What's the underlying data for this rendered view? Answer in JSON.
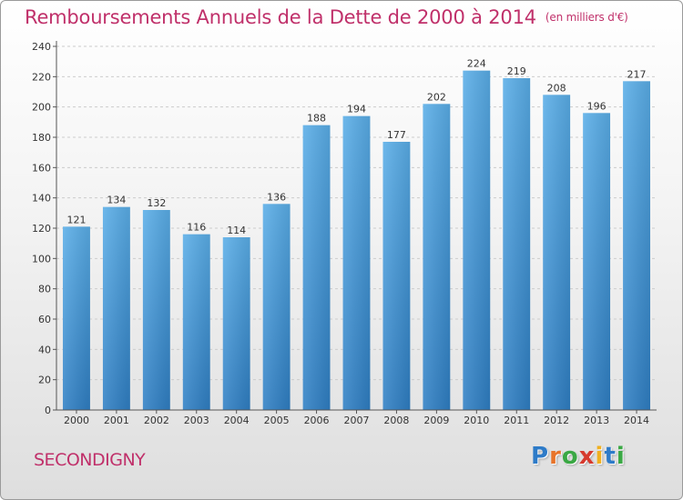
{
  "title": "Remboursements Annuels de la Dette de 2000 à 2014",
  "unit_note": "(en milliers d'€)",
  "town": "SECONDIGNY",
  "logo": {
    "text": "Proxiti",
    "letters": [
      "P",
      "r",
      "o",
      "x",
      "i",
      "t",
      "i"
    ],
    "colors": [
      "#2e7bc8",
      "#e8742a",
      "#3aa844",
      "#d63a2e",
      "#f0b020",
      "#2e7bc8",
      "#3aa844"
    ]
  },
  "colors": {
    "title": "#c0306a",
    "bar": "#4a9fdf",
    "grid": "#cccccc"
  },
  "chart_data": {
    "type": "bar",
    "title": "Remboursements Annuels de la Dette de 2000 à 2014",
    "xlabel": "",
    "ylabel": "",
    "ylim": [
      0,
      240
    ],
    "yticks": [
      0,
      20,
      40,
      60,
      80,
      100,
      120,
      140,
      160,
      180,
      200,
      220,
      240
    ],
    "grid": true,
    "categories": [
      "2000",
      "2001",
      "2002",
      "2003",
      "2004",
      "2005",
      "2006",
      "2007",
      "2008",
      "2009",
      "2010",
      "2011",
      "2012",
      "2013",
      "2014"
    ],
    "values": [
      121,
      134,
      132,
      116,
      114,
      136,
      188,
      194,
      177,
      202,
      224,
      219,
      208,
      196,
      217
    ]
  }
}
